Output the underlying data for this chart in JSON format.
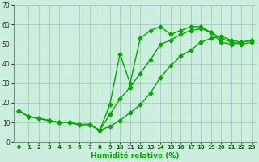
{
  "title": "",
  "xlabel": "Humidité relative (%)",
  "ylabel": "",
  "background_color": "#cceedd",
  "grid_color": "#aacccc",
  "line_color": "#00aa00",
  "marker": "D",
  "markersize": 2.5,
  "linewidth": 1.0,
  "xlim": [
    -0.5,
    23.5
  ],
  "ylim": [
    0,
    70
  ],
  "yticks": [
    0,
    10,
    20,
    30,
    40,
    50,
    60,
    70
  ],
  "xticks": [
    0,
    1,
    2,
    3,
    4,
    5,
    6,
    7,
    8,
    9,
    10,
    11,
    12,
    13,
    14,
    15,
    16,
    17,
    18,
    19,
    20,
    21,
    22,
    23
  ],
  "series": [
    {
      "x": [
        0,
        1,
        2,
        3,
        4,
        5,
        6,
        7,
        8,
        9,
        10,
        11,
        12,
        13,
        14,
        15,
        16,
        17,
        18,
        19,
        20,
        21,
        22,
        23
      ],
      "y": [
        16,
        13,
        12,
        11,
        10,
        10,
        9,
        9,
        6,
        19,
        45,
        30,
        53,
        57,
        59,
        55,
        57,
        59,
        59,
        56,
        51,
        50,
        51,
        52
      ]
    },
    {
      "x": [
        0,
        1,
        2,
        3,
        4,
        5,
        6,
        7,
        8,
        9,
        10,
        11,
        12,
        13,
        14,
        15,
        16,
        17,
        18,
        19,
        20,
        21,
        22,
        23
      ],
      "y": [
        16,
        13,
        12,
        11,
        10,
        10,
        9,
        9,
        6,
        14,
        22,
        28,
        35,
        42,
        50,
        52,
        55,
        57,
        58,
        56,
        53,
        51,
        50,
        51
      ]
    },
    {
      "x": [
        0,
        1,
        2,
        3,
        4,
        5,
        6,
        7,
        8,
        9,
        10,
        11,
        12,
        13,
        14,
        15,
        16,
        17,
        18,
        19,
        20,
        21,
        22,
        23
      ],
      "y": [
        16,
        13,
        12,
        11,
        10,
        10,
        9,
        9,
        6,
        8,
        11,
        15,
        19,
        25,
        33,
        39,
        44,
        47,
        51,
        53,
        54,
        52,
        51,
        52
      ]
    }
  ]
}
